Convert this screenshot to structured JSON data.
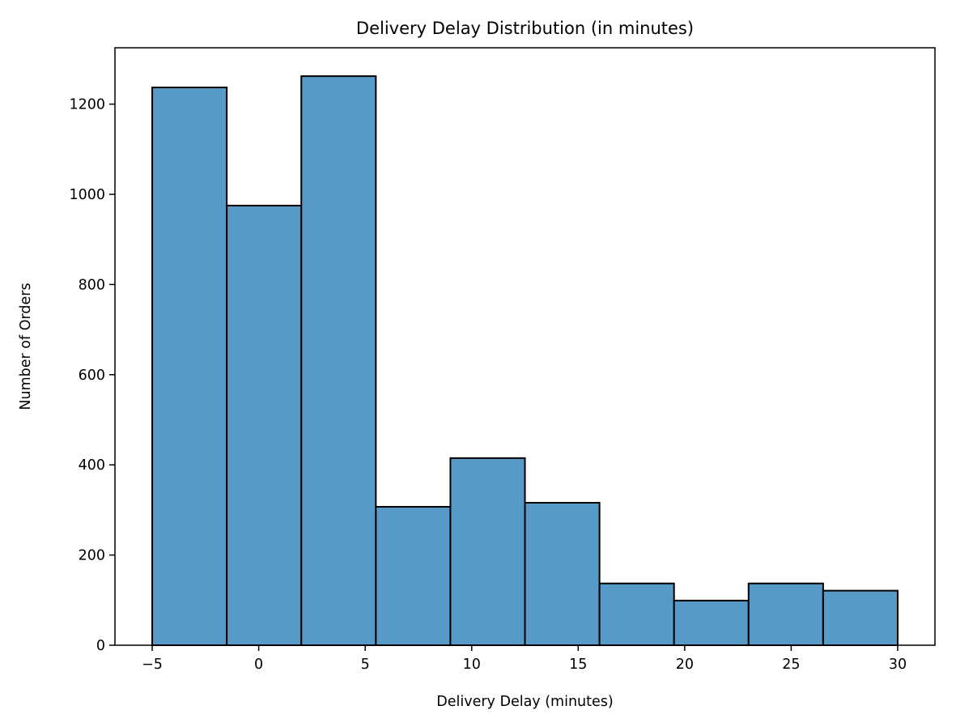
{
  "chart_data": {
    "type": "bar",
    "subtype": "histogram",
    "title": "Delivery Delay Distribution (in minutes)",
    "xlabel": "Delivery Delay (minutes)",
    "ylabel": "Number of Orders",
    "bin_edges": [
      -5,
      -1.5,
      2,
      5.5,
      9,
      12.5,
      16,
      19.5,
      23,
      26.5,
      30
    ],
    "values": [
      1237,
      975,
      1262,
      307,
      415,
      316,
      137,
      99,
      137,
      121
    ],
    "xlim": [
      -6.75,
      31.75
    ],
    "ylim": [
      0,
      1325
    ],
    "xticks": [
      -5,
      0,
      5,
      10,
      15,
      20,
      25,
      30
    ],
    "xtick_labels": [
      "−5",
      "0",
      "5",
      "10",
      "15",
      "20",
      "25",
      "30"
    ],
    "yticks": [
      0,
      200,
      400,
      600,
      800,
      1000,
      1200
    ],
    "ytick_labels": [
      "0",
      "200",
      "400",
      "600",
      "800",
      "1000",
      "1200"
    ],
    "grid": false,
    "legend": "none",
    "bar_color": "#5799c7",
    "edge_color": "#000000"
  }
}
